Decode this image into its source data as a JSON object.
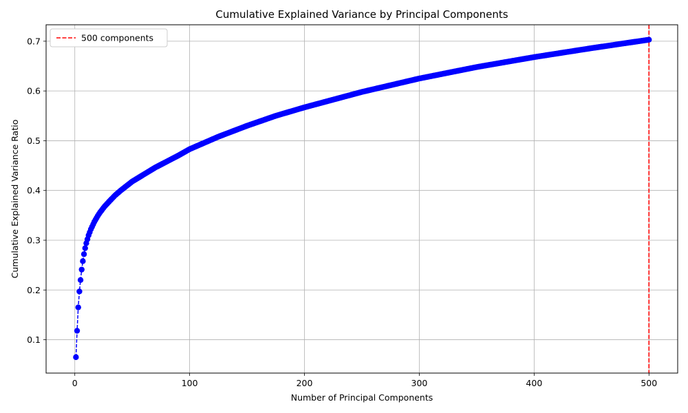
{
  "chart_data": {
    "type": "line",
    "title": "Cumulative Explained Variance by Principal Components",
    "xlabel": "Number of Principal Components",
    "ylabel": "Cumulative Explained Variance Ratio",
    "xlim": [
      -25,
      525
    ],
    "ylim": [
      0.033,
      0.733
    ],
    "xticks": [
      0,
      100,
      200,
      300,
      400,
      500
    ],
    "yticks": [
      0.1,
      0.2,
      0.3,
      0.4,
      0.5,
      0.6,
      0.7
    ],
    "grid": true,
    "legend_position": "top-left",
    "series": [
      {
        "color": "#0000ff",
        "line_style": "dashed",
        "marker": "circle",
        "x": [
          1,
          2,
          3,
          4,
          5,
          6,
          7,
          8,
          9,
          10,
          11,
          12,
          13,
          14,
          15,
          16,
          17,
          18,
          19,
          20,
          22,
          24,
          26,
          28,
          30,
          35,
          40,
          45,
          50,
          60,
          70,
          80,
          90,
          100,
          125,
          150,
          175,
          200,
          250,
          300,
          350,
          400,
          450,
          500
        ],
        "y": [
          0.065,
          0.118,
          0.165,
          0.197,
          0.22,
          0.241,
          0.258,
          0.272,
          0.284,
          0.294,
          0.302,
          0.31,
          0.316,
          0.322,
          0.327,
          0.332,
          0.337,
          0.341,
          0.345,
          0.349,
          0.356,
          0.362,
          0.368,
          0.373,
          0.378,
          0.39,
          0.4,
          0.409,
          0.418,
          0.432,
          0.446,
          0.458,
          0.47,
          0.483,
          0.508,
          0.53,
          0.55,
          0.567,
          0.598,
          0.625,
          0.648,
          0.668,
          0.686,
          0.703
        ]
      }
    ],
    "reference_lines": [
      {
        "orientation": "vertical",
        "x": 500,
        "color": "#ff0000",
        "line_style": "dashed",
        "label": "500 components"
      }
    ]
  }
}
